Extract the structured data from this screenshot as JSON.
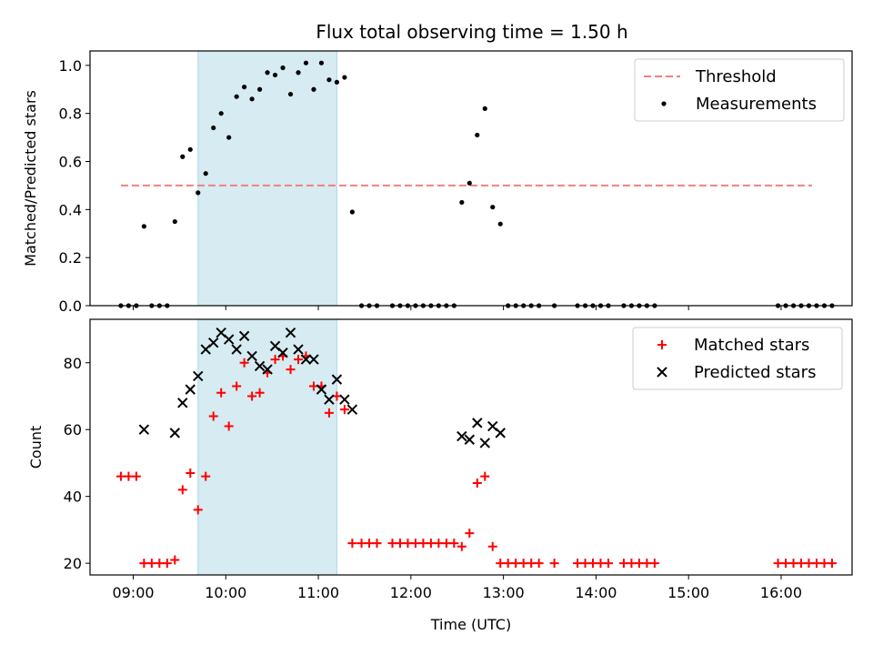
{
  "title": "Flux total observing time = 1.50 h",
  "colors": {
    "threshold": "#f08080",
    "measurement": "#000000",
    "matched": "#ff0000",
    "predicted": "#000000",
    "band": "#add8e6"
  },
  "chart_data": [
    {
      "type": "scatter",
      "ylabel": "Matched/Predicted stars",
      "xlabel": "",
      "xlim": [
        "08:32",
        "16:46"
      ],
      "ylim": [
        0,
        1.06
      ],
      "yticks": [
        "0.0",
        "0.2",
        "0.4",
        "0.6",
        "0.8",
        "1.0"
      ],
      "shaded_span": [
        "09:42",
        "11:12"
      ],
      "legend": {
        "placement": "top-right",
        "entries": [
          "Threshold",
          "Measurements"
        ]
      },
      "threshold": {
        "name": "Threshold",
        "y": 0.5,
        "x": [
          "08:52",
          "16:20"
        ]
      },
      "series": [
        {
          "name": "Measurements",
          "points": [
            [
              "08:52",
              0
            ],
            [
              "08:57",
              0
            ],
            [
              "09:02",
              0
            ],
            [
              "09:07",
              0.33
            ],
            [
              "09:12",
              0
            ],
            [
              "09:17",
              0
            ],
            [
              "09:22",
              0
            ],
            [
              "09:27",
              0.35
            ],
            [
              "09:32",
              0.62
            ],
            [
              "09:37",
              0.65
            ],
            [
              "09:42",
              0.47
            ],
            [
              "09:47",
              0.55
            ],
            [
              "09:52",
              0.74
            ],
            [
              "09:57",
              0.8
            ],
            [
              "10:02",
              0.7
            ],
            [
              "10:07",
              0.87
            ],
            [
              "10:12",
              0.91
            ],
            [
              "10:17",
              0.86
            ],
            [
              "10:22",
              0.9
            ],
            [
              "10:27",
              0.97
            ],
            [
              "10:32",
              0.96
            ],
            [
              "10:37",
              0.99
            ],
            [
              "10:42",
              0.88
            ],
            [
              "10:47",
              0.97
            ],
            [
              "10:52",
              1.01
            ],
            [
              "10:57",
              0.9
            ],
            [
              "11:02",
              1.01
            ],
            [
              "11:07",
              0.94
            ],
            [
              "11:12",
              0.93
            ],
            [
              "11:17",
              0.95
            ],
            [
              "11:22",
              0.39
            ],
            [
              "11:28",
              0
            ],
            [
              "11:33",
              0
            ],
            [
              "11:38",
              0
            ],
            [
              "11:48",
              0
            ],
            [
              "11:53",
              0
            ],
            [
              "11:58",
              0
            ],
            [
              "12:03",
              0
            ],
            [
              "12:08",
              0
            ],
            [
              "12:13",
              0
            ],
            [
              "12:18",
              0
            ],
            [
              "12:23",
              0
            ],
            [
              "12:28",
              0
            ],
            [
              "12:33",
              0.43
            ],
            [
              "12:38",
              0.51
            ],
            [
              "12:43",
              0.71
            ],
            [
              "12:48",
              0.82
            ],
            [
              "12:53",
              0.41
            ],
            [
              "12:58",
              0.34
            ],
            [
              "13:03",
              0
            ],
            [
              "13:08",
              0
            ],
            [
              "13:13",
              0
            ],
            [
              "13:18",
              0
            ],
            [
              "13:23",
              0
            ],
            [
              "13:33",
              0
            ],
            [
              "13:48",
              0
            ],
            [
              "13:53",
              0
            ],
            [
              "13:58",
              0
            ],
            [
              "14:03",
              0
            ],
            [
              "14:08",
              0
            ],
            [
              "14:18",
              0
            ],
            [
              "14:23",
              0
            ],
            [
              "14:28",
              0
            ],
            [
              "14:33",
              0
            ],
            [
              "14:38",
              0
            ],
            [
              "15:58",
              0
            ],
            [
              "16:03",
              0
            ],
            [
              "16:08",
              0
            ],
            [
              "16:13",
              0
            ],
            [
              "16:18",
              0
            ],
            [
              "16:23",
              0
            ],
            [
              "16:28",
              0
            ],
            [
              "16:33",
              0
            ]
          ]
        }
      ]
    },
    {
      "type": "scatter",
      "ylabel": "Count",
      "xlabel": "Time (UTC)",
      "xlim": [
        "08:32",
        "16:46"
      ],
      "ylim": [
        16.5,
        93
      ],
      "yticks": [
        "20",
        "40",
        "60",
        "80"
      ],
      "xticks": [
        "09:00",
        "10:00",
        "11:00",
        "12:00",
        "13:00",
        "14:00",
        "15:00",
        "16:00"
      ],
      "shaded_span": [
        "09:42",
        "11:12"
      ],
      "legend": {
        "placement": "top-right",
        "entries": [
          "Matched stars",
          "Predicted stars"
        ]
      },
      "series": [
        {
          "name": "Matched stars",
          "marker": "plus",
          "points": [
            [
              "08:52",
              46
            ],
            [
              "08:57",
              46
            ],
            [
              "09:02",
              46
            ],
            [
              "09:07",
              20
            ],
            [
              "09:12",
              20
            ],
            [
              "09:17",
              20
            ],
            [
              "09:22",
              20
            ],
            [
              "09:27",
              21
            ],
            [
              "09:32",
              42
            ],
            [
              "09:37",
              47
            ],
            [
              "09:42",
              36
            ],
            [
              "09:47",
              46
            ],
            [
              "09:52",
              64
            ],
            [
              "09:57",
              71
            ],
            [
              "10:02",
              61
            ],
            [
              "10:07",
              73
            ],
            [
              "10:12",
              80
            ],
            [
              "10:17",
              70
            ],
            [
              "10:22",
              71
            ],
            [
              "10:27",
              77
            ],
            [
              "10:32",
              81
            ],
            [
              "10:37",
              82
            ],
            [
              "10:42",
              78
            ],
            [
              "10:47",
              81
            ],
            [
              "10:52",
              82
            ],
            [
              "10:57",
              73
            ],
            [
              "11:02",
              73
            ],
            [
              "11:07",
              65
            ],
            [
              "11:12",
              70
            ],
            [
              "11:17",
              66
            ],
            [
              "11:22",
              26
            ],
            [
              "11:28",
              26
            ],
            [
              "11:33",
              26
            ],
            [
              "11:38",
              26
            ],
            [
              "11:48",
              26
            ],
            [
              "11:53",
              26
            ],
            [
              "11:58",
              26
            ],
            [
              "12:03",
              26
            ],
            [
              "12:08",
              26
            ],
            [
              "12:13",
              26
            ],
            [
              "12:18",
              26
            ],
            [
              "12:23",
              26
            ],
            [
              "12:28",
              26
            ],
            [
              "12:33",
              25
            ],
            [
              "12:38",
              29
            ],
            [
              "12:43",
              44
            ],
            [
              "12:48",
              46
            ],
            [
              "12:53",
              25
            ],
            [
              "12:58",
              20
            ],
            [
              "13:03",
              20
            ],
            [
              "13:08",
              20
            ],
            [
              "13:13",
              20
            ],
            [
              "13:18",
              20
            ],
            [
              "13:23",
              20
            ],
            [
              "13:33",
              20
            ],
            [
              "13:48",
              20
            ],
            [
              "13:53",
              20
            ],
            [
              "13:58",
              20
            ],
            [
              "14:03",
              20
            ],
            [
              "14:08",
              20
            ],
            [
              "14:18",
              20
            ],
            [
              "14:23",
              20
            ],
            [
              "14:28",
              20
            ],
            [
              "14:33",
              20
            ],
            [
              "14:38",
              20
            ],
            [
              "15:58",
              20
            ],
            [
              "16:03",
              20
            ],
            [
              "16:08",
              20
            ],
            [
              "16:13",
              20
            ],
            [
              "16:18",
              20
            ],
            [
              "16:23",
              20
            ],
            [
              "16:28",
              20
            ],
            [
              "16:33",
              20
            ]
          ]
        },
        {
          "name": "Predicted stars",
          "marker": "x",
          "points": [
            [
              "09:07",
              60
            ],
            [
              "09:27",
              59
            ],
            [
              "09:32",
              68
            ],
            [
              "09:37",
              72
            ],
            [
              "09:42",
              76
            ],
            [
              "09:47",
              84
            ],
            [
              "09:52",
              86
            ],
            [
              "09:57",
              89
            ],
            [
              "10:02",
              87
            ],
            [
              "10:07",
              84
            ],
            [
              "10:12",
              88
            ],
            [
              "10:17",
              82
            ],
            [
              "10:22",
              79
            ],
            [
              "10:27",
              78
            ],
            [
              "10:32",
              85
            ],
            [
              "10:37",
              83
            ],
            [
              "10:42",
              89
            ],
            [
              "10:47",
              84
            ],
            [
              "10:52",
              81
            ],
            [
              "10:57",
              81
            ],
            [
              "11:02",
              72
            ],
            [
              "11:07",
              69
            ],
            [
              "11:12",
              75
            ],
            [
              "11:17",
              69
            ],
            [
              "11:22",
              66
            ],
            [
              "12:33",
              58
            ],
            [
              "12:38",
              57
            ],
            [
              "12:43",
              62
            ],
            [
              "12:48",
              56
            ],
            [
              "12:53",
              61
            ],
            [
              "12:58",
              59
            ]
          ]
        }
      ]
    }
  ]
}
